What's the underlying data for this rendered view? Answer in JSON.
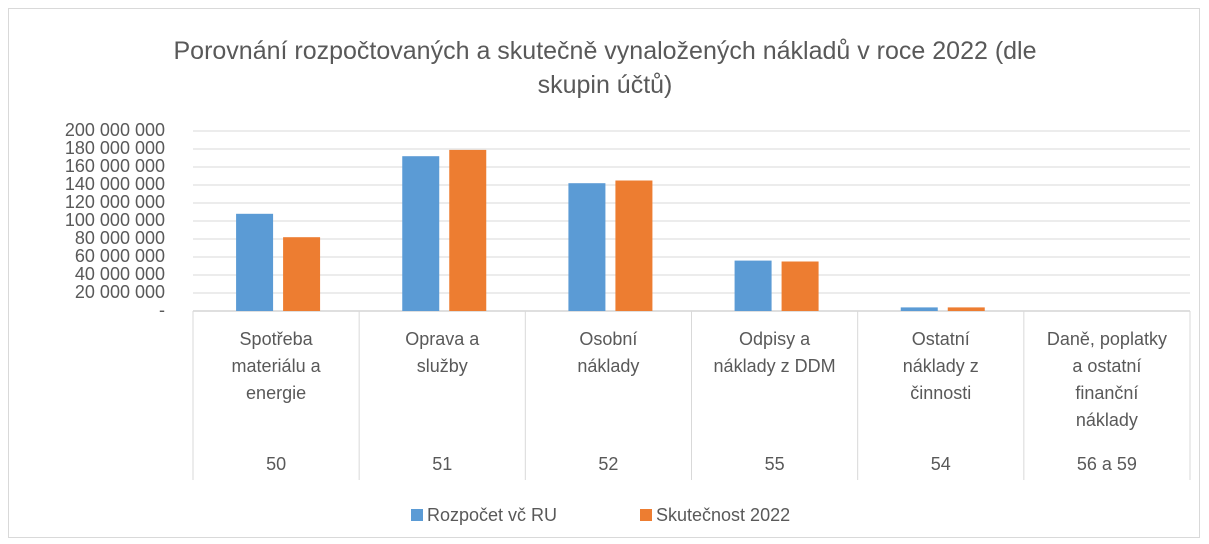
{
  "chart_data": {
    "type": "bar",
    "title": "Porovnání rozpočtovaných a skutečně vynaložených nákladů v roce 2022 (dle skupin účtů)",
    "categories": [
      "50",
      "51",
      "52",
      "55",
      "54",
      "56 a 59"
    ],
    "category_names": [
      [
        "Spotřeba",
        "materiálu a",
        "energie"
      ],
      [
        "Oprava a",
        "služby"
      ],
      [
        "Osobní",
        "náklady"
      ],
      [
        "Odpisy a",
        "náklady z DDM"
      ],
      [
        "Ostatní",
        "náklady z",
        "činnosti"
      ],
      [
        "Daně, poplatky",
        "a ostatní",
        "finanční",
        "náklady"
      ]
    ],
    "series": [
      {
        "name": "Rozpočet vč RU",
        "color": "#5b9bd5",
        "values": [
          108000000,
          172000000,
          142000000,
          56000000,
          4000000,
          0
        ]
      },
      {
        "name": "Skutečnost 2022",
        "color": "#ed7d31",
        "values": [
          82000000,
          179000000,
          145000000,
          55000000,
          4000000,
          0
        ]
      }
    ],
    "ylim": [
      0,
      200000000
    ],
    "yticks": [
      {
        "value": 0,
        "label": "-"
      },
      {
        "value": 20000000,
        "label": "20 000 000"
      },
      {
        "value": 40000000,
        "label": "40 000 000"
      },
      {
        "value": 60000000,
        "label": "60 000 000"
      },
      {
        "value": 80000000,
        "label": "80 000 000"
      },
      {
        "value": 100000000,
        "label": "100 000 000"
      },
      {
        "value": 120000000,
        "label": "120 000 000"
      },
      {
        "value": 140000000,
        "label": "140 000 000"
      },
      {
        "value": 160000000,
        "label": "160 000 000"
      },
      {
        "value": 180000000,
        "label": "180 000 000"
      },
      {
        "value": 200000000,
        "label": "200 000 000"
      }
    ],
    "grid": true,
    "legend": "bottom"
  }
}
